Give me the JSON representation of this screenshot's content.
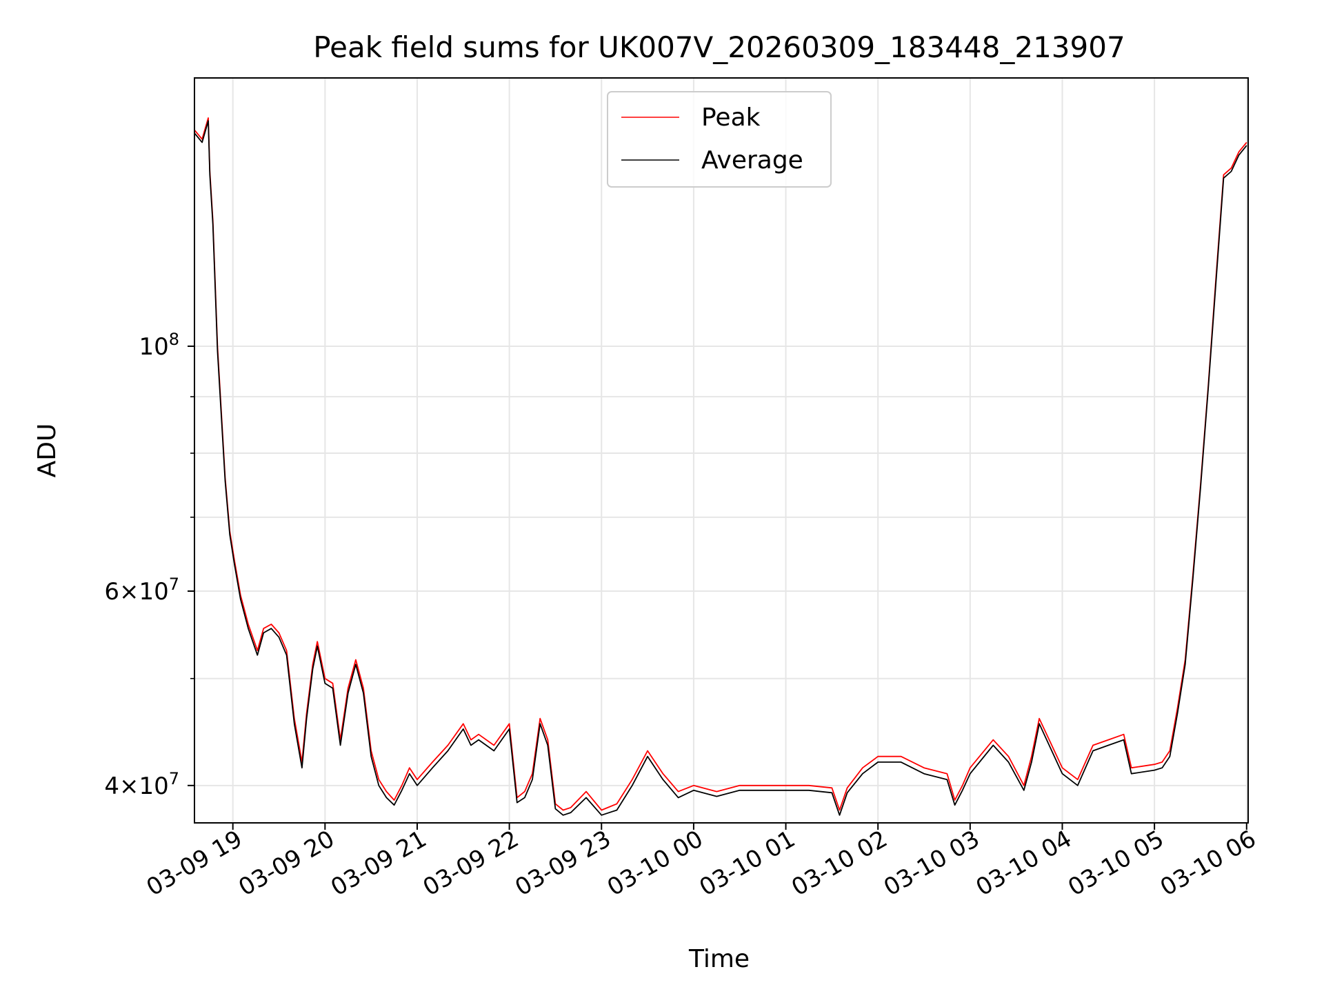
{
  "chart_data": {
    "type": "line",
    "title": "Peak field sums for UK007V_20260309_183448_213907",
    "xlabel": "Time",
    "ylabel": "ADU",
    "x_tick_labels": [
      "03-09 19",
      "03-09 20",
      "03-09 21",
      "03-09 22",
      "03-09 23",
      "03-10 00",
      "03-10 01",
      "03-10 02",
      "03-10 03",
      "03-10 04",
      "03-10 05",
      "03-10 06"
    ],
    "y_scale": "log",
    "ylim": [
      37000000,
      175000000
    ],
    "y_major_ticks": [
      {
        "value": 40000000,
        "mantissa": "4",
        "exponent": "7"
      },
      {
        "value": 60000000,
        "mantissa": "6",
        "exponent": "7"
      },
      {
        "value": 100000000,
        "mantissa": "",
        "exponent": "8"
      }
    ],
    "y_minor_ticks": [
      50000000,
      70000000,
      80000000,
      90000000
    ],
    "grid": true,
    "legend_position": "top-center",
    "series": [
      {
        "name": "Peak",
        "color": "#ff0000",
        "x": [
          "2026-03-09 18:35",
          "2026-03-09 18:40",
          "2026-03-09 18:44",
          "2026-03-09 18:45",
          "2026-03-09 18:47",
          "2026-03-09 18:50",
          "2026-03-09 18:55",
          "2026-03-09 18:58",
          "2026-03-09 19:01",
          "2026-03-09 19:05",
          "2026-03-09 19:10",
          "2026-03-09 19:16",
          "2026-03-09 19:20",
          "2026-03-09 19:25",
          "2026-03-09 19:30",
          "2026-03-09 19:35",
          "2026-03-09 19:40",
          "2026-03-09 19:45",
          "2026-03-09 19:48",
          "2026-03-09 19:52",
          "2026-03-09 19:55",
          "2026-03-09 20:00",
          "2026-03-09 20:05",
          "2026-03-09 20:10",
          "2026-03-09 20:15",
          "2026-03-09 20:20",
          "2026-03-09 20:25",
          "2026-03-09 20:30",
          "2026-03-09 20:35",
          "2026-03-09 20:40",
          "2026-03-09 20:45",
          "2026-03-09 20:50",
          "2026-03-09 20:55",
          "2026-03-09 21:00",
          "2026-03-09 21:10",
          "2026-03-09 21:20",
          "2026-03-09 21:30",
          "2026-03-09 21:35",
          "2026-03-09 21:40",
          "2026-03-09 21:50",
          "2026-03-09 22:00",
          "2026-03-09 22:05",
          "2026-03-09 22:10",
          "2026-03-09 22:15",
          "2026-03-09 22:20",
          "2026-03-09 22:25",
          "2026-03-09 22:30",
          "2026-03-09 22:35",
          "2026-03-09 22:40",
          "2026-03-09 22:50",
          "2026-03-09 23:00",
          "2026-03-09 23:10",
          "2026-03-09 23:20",
          "2026-03-09 23:30",
          "2026-03-09 23:40",
          "2026-03-09 23:50",
          "2026-03-10 00:00",
          "2026-03-10 00:15",
          "2026-03-10 00:30",
          "2026-03-10 00:45",
          "2026-03-10 01:00",
          "2026-03-10 01:15",
          "2026-03-10 01:30",
          "2026-03-10 01:35",
          "2026-03-10 01:40",
          "2026-03-10 01:50",
          "2026-03-10 02:00",
          "2026-03-10 02:15",
          "2026-03-10 02:30",
          "2026-03-10 02:45",
          "2026-03-10 02:50",
          "2026-03-10 02:55",
          "2026-03-10 03:00",
          "2026-03-10 03:15",
          "2026-03-10 03:25",
          "2026-03-10 03:35",
          "2026-03-10 03:40",
          "2026-03-10 03:45",
          "2026-03-10 04:00",
          "2026-03-10 04:10",
          "2026-03-10 04:20",
          "2026-03-10 04:30",
          "2026-03-10 04:40",
          "2026-03-10 04:45",
          "2026-03-10 05:00",
          "2026-03-10 05:05",
          "2026-03-10 05:10",
          "2026-03-10 05:15",
          "2026-03-10 05:20",
          "2026-03-10 05:25",
          "2026-03-10 05:30",
          "2026-03-10 05:35",
          "2026-03-10 05:40",
          "2026-03-10 05:45",
          "2026-03-10 05:50",
          "2026-03-10 05:55",
          "2026-03-10 06:00"
        ],
        "y": [
          157000000,
          154000000,
          161000000,
          144000000,
          130000000,
          100000000,
          76000000,
          68000000,
          64000000,
          59500000,
          56000000,
          53000000,
          55500000,
          56000000,
          55000000,
          53000000,
          46000000,
          42000000,
          46500000,
          51500000,
          54000000,
          50000000,
          49500000,
          44000000,
          49000000,
          52000000,
          49000000,
          43000000,
          40500000,
          39500000,
          38800000,
          40000000,
          41500000,
          40500000,
          42000000,
          43500000,
          45500000,
          44000000,
          44500000,
          43500000,
          45500000,
          39000000,
          39500000,
          41000000,
          46000000,
          44000000,
          38500000,
          38000000,
          38200000,
          39500000,
          38000000,
          38500000,
          40500000,
          43000000,
          41000000,
          39500000,
          40000000,
          39500000,
          40000000,
          40000000,
          40000000,
          40000000,
          39800000,
          38000000,
          39800000,
          41500000,
          42500000,
          42500000,
          41500000,
          41000000,
          38800000,
          40000000,
          41500000,
          44000000,
          42500000,
          40000000,
          42500000,
          46000000,
          41500000,
          40500000,
          43500000,
          44000000,
          44500000,
          41500000,
          41800000,
          42000000,
          43000000,
          47000000,
          52000000,
          62000000,
          75000000,
          92000000,
          115000000,
          143000000,
          145000000,
          150000000,
          153000000
        ]
      },
      {
        "name": "Average",
        "color": "#000000",
        "x": [
          "2026-03-09 18:35",
          "2026-03-09 18:40",
          "2026-03-09 18:44",
          "2026-03-09 18:45",
          "2026-03-09 18:47",
          "2026-03-09 18:50",
          "2026-03-09 18:55",
          "2026-03-09 18:58",
          "2026-03-09 19:01",
          "2026-03-09 19:05",
          "2026-03-09 19:10",
          "2026-03-09 19:16",
          "2026-03-09 19:20",
          "2026-03-09 19:25",
          "2026-03-09 19:30",
          "2026-03-09 19:35",
          "2026-03-09 19:40",
          "2026-03-09 19:45",
          "2026-03-09 19:48",
          "2026-03-09 19:52",
          "2026-03-09 19:55",
          "2026-03-09 20:00",
          "2026-03-09 20:05",
          "2026-03-09 20:10",
          "2026-03-09 20:15",
          "2026-03-09 20:20",
          "2026-03-09 20:25",
          "2026-03-09 20:30",
          "2026-03-09 20:35",
          "2026-03-09 20:40",
          "2026-03-09 20:45",
          "2026-03-09 20:50",
          "2026-03-09 20:55",
          "2026-03-09 21:00",
          "2026-03-09 21:10",
          "2026-03-09 21:20",
          "2026-03-09 21:30",
          "2026-03-09 21:35",
          "2026-03-09 21:40",
          "2026-03-09 21:50",
          "2026-03-09 22:00",
          "2026-03-09 22:05",
          "2026-03-09 22:10",
          "2026-03-09 22:15",
          "2026-03-09 22:20",
          "2026-03-09 22:25",
          "2026-03-09 22:30",
          "2026-03-09 22:35",
          "2026-03-09 22:40",
          "2026-03-09 22:50",
          "2026-03-09 23:00",
          "2026-03-09 23:10",
          "2026-03-09 23:20",
          "2026-03-09 23:30",
          "2026-03-09 23:40",
          "2026-03-09 23:50",
          "2026-03-10 00:00",
          "2026-03-10 00:15",
          "2026-03-10 00:30",
          "2026-03-10 00:45",
          "2026-03-10 01:00",
          "2026-03-10 01:15",
          "2026-03-10 01:30",
          "2026-03-10 01:35",
          "2026-03-10 01:40",
          "2026-03-10 01:50",
          "2026-03-10 02:00",
          "2026-03-10 02:15",
          "2026-03-10 02:30",
          "2026-03-10 02:45",
          "2026-03-10 02:50",
          "2026-03-10 02:55",
          "2026-03-10 03:00",
          "2026-03-10 03:15",
          "2026-03-10 03:25",
          "2026-03-10 03:35",
          "2026-03-10 03:40",
          "2026-03-10 03:45",
          "2026-03-10 04:00",
          "2026-03-10 04:10",
          "2026-03-10 04:20",
          "2026-03-10 04:30",
          "2026-03-10 04:40",
          "2026-03-10 04:45",
          "2026-03-10 05:00",
          "2026-03-10 05:05",
          "2026-03-10 05:10",
          "2026-03-10 05:15",
          "2026-03-10 05:20",
          "2026-03-10 05:25",
          "2026-03-10 05:30",
          "2026-03-10 05:35",
          "2026-03-10 05:40",
          "2026-03-10 05:45",
          "2026-03-10 05:50",
          "2026-03-10 05:55",
          "2026-03-10 06:00"
        ],
        "y": [
          156000000,
          153000000,
          160000000,
          143000000,
          129000000,
          99000000,
          75500000,
          67500000,
          63500000,
          59000000,
          55500000,
          52500000,
          55000000,
          55500000,
          54500000,
          52500000,
          45500000,
          41500000,
          46000000,
          51000000,
          53500000,
          49500000,
          49000000,
          43500000,
          48500000,
          51500000,
          48500000,
          42500000,
          40000000,
          39000000,
          38400000,
          39600000,
          41000000,
          40000000,
          41500000,
          43000000,
          45000000,
          43500000,
          44000000,
          43000000,
          45000000,
          38600000,
          39000000,
          40500000,
          45500000,
          43500000,
          38100000,
          37600000,
          37800000,
          39000000,
          37600000,
          38000000,
          40000000,
          42500000,
          40500000,
          39000000,
          39600000,
          39100000,
          39600000,
          39600000,
          39600000,
          39600000,
          39400000,
          37600000,
          39400000,
          41000000,
          42000000,
          42000000,
          41000000,
          40500000,
          38400000,
          39600000,
          41000000,
          43500000,
          42000000,
          39600000,
          42000000,
          45500000,
          41000000,
          40000000,
          43000000,
          43500000,
          44000000,
          41000000,
          41300000,
          41500000,
          42500000,
          46500000,
          51500000,
          61500000,
          74500000,
          91500000,
          114000000,
          142000000,
          144000000,
          149000000,
          152000000
        ]
      }
    ]
  }
}
